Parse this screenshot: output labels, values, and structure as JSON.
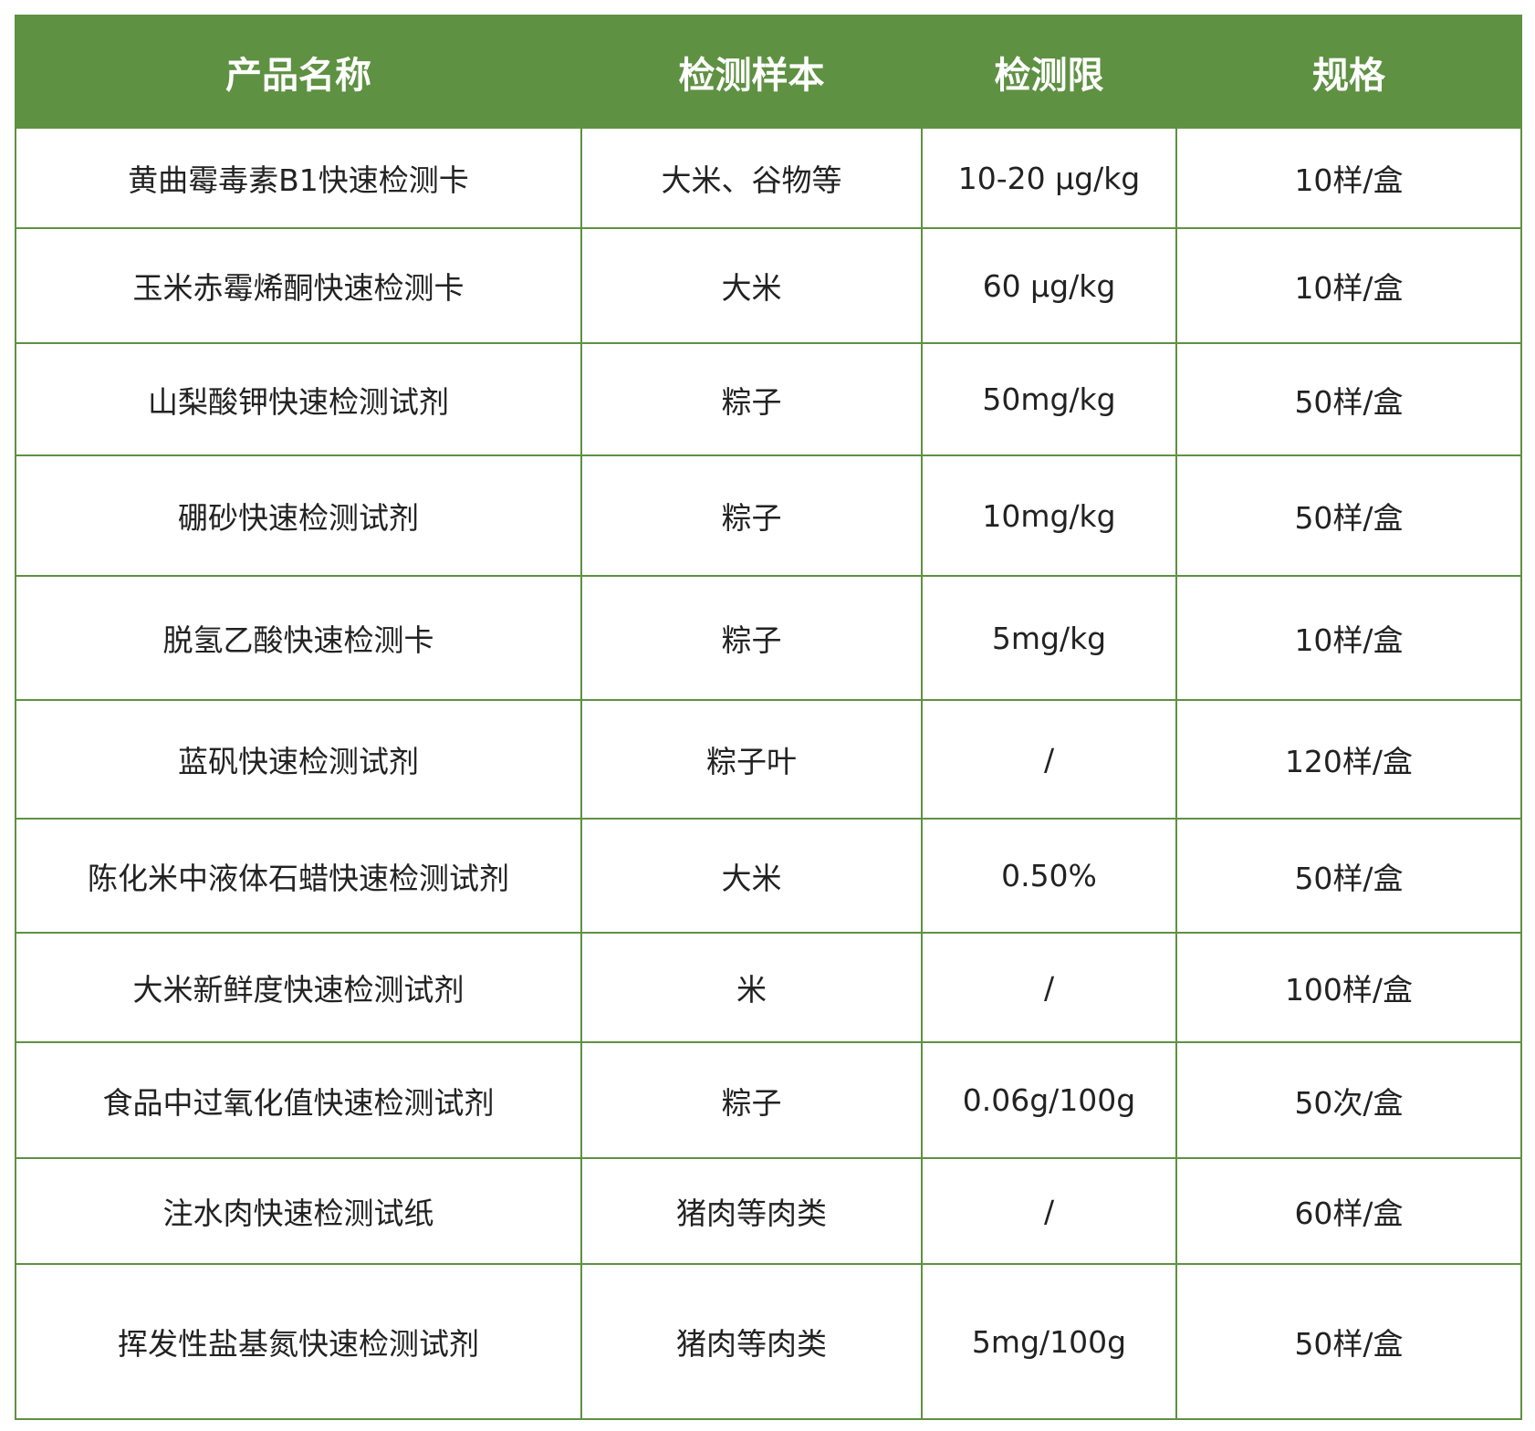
{
  "table": {
    "header": [
      "产品名称",
      "检测样本",
      "检测限",
      "规格"
    ],
    "rows": [
      [
        "黄曲霉毒素B1快速检测卡",
        "大米、谷物等",
        "10-20 μg/kg",
        "10样/盒"
      ],
      [
        "玉米赤霉烯酮快速检测卡",
        "大米",
        "60 μg/kg",
        "10样/盒"
      ],
      [
        "山梨酸钾快速检测试剂",
        "粽子",
        "50mg/kg",
        "50样/盒"
      ],
      [
        "硼砂快速检测试剂",
        "粽子",
        "10mg/kg",
        "50样/盒"
      ],
      [
        "脱氢乙酸快速检测卡",
        "粽子",
        "5mg/kg",
        "10样/盒"
      ],
      [
        "蓝矾快速检测试剂",
        "粽子叶",
        "/",
        "120样/盒"
      ],
      [
        "陈化米中液体石蜡快速检测试剂",
        "大米",
        "0.50%",
        "50样/盒"
      ],
      [
        "大米新鲜度快速检测试剂",
        "米",
        "/",
        "100样/盒"
      ],
      [
        "食品中过氧化值快速检测试剂",
        "粽子",
        "0.06g/100g",
        "50次/盒"
      ],
      [
        "注水肉快速检测试纸",
        "猪肉等肉类",
        "/",
        "60样/盒"
      ],
      [
        "挥发性盐基氮快速检测试剂",
        "猪肉等肉类",
        "5mg/100g",
        "50样/盒"
      ]
    ]
  }
}
